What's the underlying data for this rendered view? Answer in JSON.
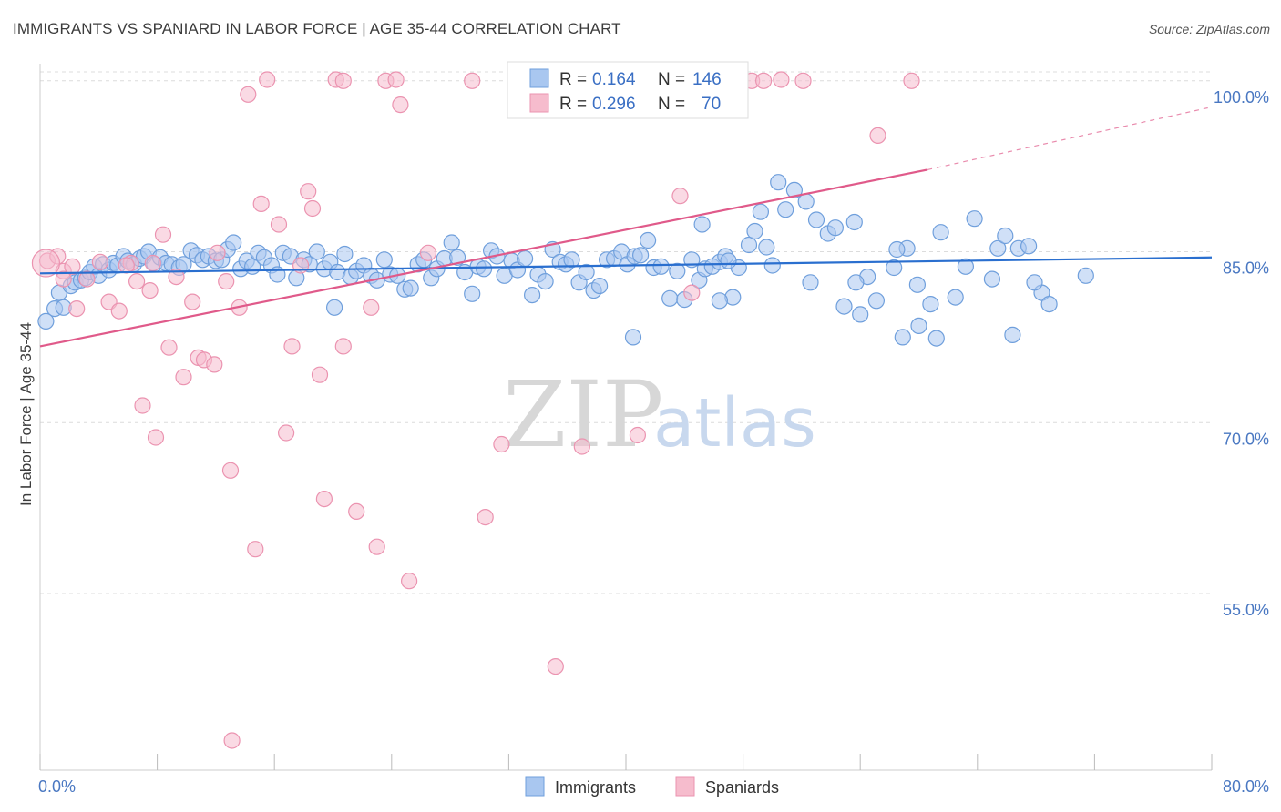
{
  "header": {
    "title": "IMMIGRANTS VS SPANIARD IN LABOR FORCE | AGE 35-44 CORRELATION CHART",
    "source": "Source: ZipAtlas.com"
  },
  "watermark": {
    "zip": "ZIP",
    "atlas": "atlas"
  },
  "legend": {
    "rows": [
      {
        "r_label": "R =",
        "r_value": "0.164",
        "n_label": "N =",
        "n_value": "146"
      },
      {
        "r_label": "R =",
        "r_value": "0.296",
        "n_label": "N =",
        "n_value": "70"
      }
    ]
  },
  "bottom_legend": [
    "Immigrants",
    "Spaniards"
  ],
  "chart_data": {
    "type": "scatter",
    "title": "IMMIGRANTS VS SPANIARD IN LABOR FORCE | AGE 35-44 CORRELATION CHART",
    "xlabel": "",
    "ylabel": "In Labor Force | Age 35-44",
    "xlim": [
      0,
      80
    ],
    "ylim": [
      39.5,
      101.5
    ],
    "x_tick_labels": [
      "0.0%",
      "80.0%"
    ],
    "y_ticks": [
      55,
      70,
      85,
      100
    ],
    "y_tick_labels": [
      "55.0%",
      "70.0%",
      "85.0%",
      "100.0%"
    ],
    "grid": true,
    "legend_position": "top-center",
    "colors": {
      "immigrants_fill": "#a9c7f0",
      "immigrants_stroke": "#6f9fdc",
      "immigrants_line": "#2a6fcf",
      "spaniards_fill": "#f6bccd",
      "spaniards_stroke": "#eb93b0",
      "spaniards_line": "#e05a8a",
      "tick_text": "#4a78c2"
    },
    "series": [
      {
        "name": "Immigrants",
        "r": 0.164,
        "n": 146,
        "trend": {
          "x": [
            0,
            80
          ],
          "y": [
            83.1,
            84.5
          ]
        },
        "points": [
          [
            0.4,
            78.9
          ],
          [
            1,
            80
          ],
          [
            1.3,
            81.4
          ],
          [
            1.6,
            80.1
          ],
          [
            2.1,
            82
          ],
          [
            2.4,
            82.3
          ],
          [
            2.8,
            82.5
          ],
          [
            3.1,
            82.7
          ],
          [
            3.4,
            83.2
          ],
          [
            3.7,
            83.7
          ],
          [
            4,
            82.9
          ],
          [
            4.3,
            83.9
          ],
          [
            4.7,
            83.4
          ],
          [
            5.0,
            84
          ],
          [
            5.3,
            83.8
          ],
          [
            5.7,
            84.6
          ],
          [
            6,
            84.2
          ],
          [
            6.4,
            83.9
          ],
          [
            6.8,
            84.4
          ],
          [
            7.1,
            84.6
          ],
          [
            7.4,
            85
          ],
          [
            7.8,
            83.9
          ],
          [
            8.2,
            84.5
          ],
          [
            8.6,
            84
          ],
          [
            9,
            83.9
          ],
          [
            9.5,
            83.6
          ],
          [
            9.8,
            83.9
          ],
          [
            10.3,
            85.1
          ],
          [
            10.7,
            84.7
          ],
          [
            11.1,
            84.3
          ],
          [
            11.5,
            84.6
          ],
          [
            12,
            84.2
          ],
          [
            12.4,
            84.3
          ],
          [
            12.8,
            85.2
          ],
          [
            13.2,
            85.8
          ],
          [
            13.7,
            83.5
          ],
          [
            14.1,
            84.2
          ],
          [
            14.5,
            83.7
          ],
          [
            14.9,
            84.9
          ],
          [
            15.3,
            84.5
          ],
          [
            15.8,
            83.8
          ],
          [
            16.2,
            83
          ],
          [
            16.6,
            84.9
          ],
          [
            17.1,
            84.6
          ],
          [
            17.5,
            82.7
          ],
          [
            18,
            84.3
          ],
          [
            18.4,
            83.9
          ],
          [
            18.9,
            85
          ],
          [
            19.4,
            83.5
          ],
          [
            19.8,
            84.1
          ],
          [
            20.3,
            83.2
          ],
          [
            20.8,
            84.8
          ],
          [
            21.2,
            82.8
          ],
          [
            21.6,
            83.3
          ],
          [
            22.1,
            83.8
          ],
          [
            22.6,
            82.9
          ],
          [
            23,
            82.5
          ],
          [
            23.5,
            84.3
          ],
          [
            23.9,
            83
          ],
          [
            24.4,
            82.9
          ],
          [
            24.9,
            81.7
          ],
          [
            25.3,
            81.8
          ],
          [
            25.8,
            83.9
          ],
          [
            26.2,
            84.3
          ],
          [
            26.7,
            82.7
          ],
          [
            27.1,
            83.5
          ],
          [
            27.6,
            84.4
          ],
          [
            28.1,
            85.8
          ],
          [
            28.5,
            84.5
          ],
          [
            29,
            83.2
          ],
          [
            29.5,
            81.3
          ],
          [
            29.9,
            83.7
          ],
          [
            30.3,
            83.5
          ],
          [
            30.8,
            85.1
          ],
          [
            31.2,
            84.6
          ],
          [
            31.7,
            82.9
          ],
          [
            32.2,
            84.2
          ],
          [
            32.6,
            83.4
          ],
          [
            33.1,
            84.4
          ],
          [
            33.6,
            81.2
          ],
          [
            34,
            83
          ],
          [
            34.5,
            82.4
          ],
          [
            35,
            85.2
          ],
          [
            35.5,
            84.1
          ],
          [
            35.9,
            83.9
          ],
          [
            36.3,
            84.3
          ],
          [
            36.8,
            82.3
          ],
          [
            37.3,
            83.2
          ],
          [
            37.8,
            81.6
          ],
          [
            38.2,
            82
          ],
          [
            38.7,
            84.3
          ],
          [
            39.2,
            84.4
          ],
          [
            39.7,
            85
          ],
          [
            40.1,
            83.9
          ],
          [
            40.6,
            84.6
          ],
          [
            41,
            84.7
          ],
          [
            41.5,
            86
          ],
          [
            41.9,
            83.6
          ],
          [
            42.4,
            83.7
          ],
          [
            43,
            80.9
          ],
          [
            43.5,
            83.3
          ],
          [
            44,
            80.8
          ],
          [
            44.5,
            84.3
          ],
          [
            45,
            82.5
          ],
          [
            45.4,
            83.5
          ],
          [
            45.9,
            83.7
          ],
          [
            46.4,
            84.1
          ],
          [
            46.8,
            84.6
          ],
          [
            47.3,
            81
          ],
          [
            47.7,
            83.6
          ],
          [
            48.4,
            85.6
          ],
          [
            48.8,
            86.8
          ],
          [
            49.2,
            88.5
          ],
          [
            49.6,
            85.4
          ],
          [
            50,
            83.8
          ],
          [
            50.4,
            91.1
          ],
          [
            50.9,
            88.7
          ],
          [
            51.5,
            90.4
          ],
          [
            52.3,
            89.4
          ],
          [
            53,
            87.8
          ],
          [
            53.8,
            86.6
          ],
          [
            54.3,
            87.1
          ],
          [
            54.9,
            80.2
          ],
          [
            55.6,
            87.6
          ],
          [
            56.5,
            82.8
          ],
          [
            57.1,
            80.7
          ],
          [
            58.3,
            83.6
          ],
          [
            59.2,
            85.3
          ],
          [
            60.8,
            80.4
          ],
          [
            61.5,
            86.7
          ],
          [
            62.5,
            81
          ],
          [
            63.2,
            83.7
          ],
          [
            63.8,
            87.9
          ],
          [
            65.4,
            85.3
          ],
          [
            65.9,
            86.4
          ],
          [
            66.4,
            77.7
          ],
          [
            66.8,
            85.3
          ],
          [
            67.5,
            85.5
          ],
          [
            68.4,
            81.4
          ],
          [
            68.9,
            80.4
          ],
          [
            71.4,
            82.9
          ],
          [
            60,
            78.5
          ],
          [
            56,
            79.5
          ],
          [
            46.4,
            80.7
          ],
          [
            20.1,
            80.1
          ],
          [
            45.2,
            87.4
          ],
          [
            40.5,
            77.5
          ],
          [
            58.9,
            77.5
          ],
          [
            61.2,
            77.4
          ],
          [
            47,
            84.2
          ],
          [
            52.6,
            82.3
          ],
          [
            65,
            82.6
          ],
          [
            55.7,
            82.3
          ],
          [
            59.9,
            82.1
          ],
          [
            67.9,
            82.3
          ],
          [
            58.5,
            85.2
          ]
        ]
      },
      {
        "name": "Spaniards",
        "r": 0.296,
        "n": 70,
        "trend": {
          "x": [
            0,
            60.6
          ],
          "y": [
            76.7,
            92.2
          ]
        },
        "trend_dashed": {
          "x": [
            60.6,
            80
          ],
          "y": [
            92.2,
            97.7
          ]
        },
        "points": [
          [
            0.5,
            84.2
          ],
          [
            1.2,
            84.6
          ],
          [
            1.6,
            83.3
          ],
          [
            2.2,
            83.7
          ],
          [
            2.5,
            80
          ],
          [
            3.2,
            82.6
          ],
          [
            4.1,
            84.1
          ],
          [
            4.7,
            80.6
          ],
          [
            5.4,
            79.8
          ],
          [
            6.2,
            84
          ],
          [
            6.6,
            82.4
          ],
          [
            7.0,
            71.5
          ],
          [
            7.5,
            81.6
          ],
          [
            7.9,
            68.7
          ],
          [
            8.4,
            86.5
          ],
          [
            8.8,
            76.6
          ],
          [
            9.3,
            82.8
          ],
          [
            9.8,
            74
          ],
          [
            10.4,
            80.6
          ],
          [
            10.8,
            75.7
          ],
          [
            11.2,
            75.5
          ],
          [
            11.9,
            75.1
          ],
          [
            12.1,
            84.9
          ],
          [
            13.0,
            65.8
          ],
          [
            13.6,
            80.1
          ],
          [
            14.2,
            98.8
          ],
          [
            14.7,
            58.9
          ],
          [
            15.1,
            89.2
          ],
          [
            15.5,
            100.1
          ],
          [
            16.3,
            87.4
          ],
          [
            16.8,
            69.1
          ],
          [
            17.2,
            76.7
          ],
          [
            17.8,
            83.8
          ],
          [
            18.3,
            90.3
          ],
          [
            18.6,
            88.8
          ],
          [
            19.1,
            74.2
          ],
          [
            19.4,
            63.3
          ],
          [
            20.2,
            100.1
          ],
          [
            20.7,
            100
          ],
          [
            20.7,
            76.7
          ],
          [
            21.6,
            62.2
          ],
          [
            22.6,
            80.1
          ],
          [
            23.0,
            59.1
          ],
          [
            23.6,
            100
          ],
          [
            24.3,
            100.1
          ],
          [
            24.6,
            97.9
          ],
          [
            25.2,
            56.1
          ],
          [
            26.5,
            84.9
          ],
          [
            29.5,
            100
          ],
          [
            30.4,
            61.7
          ],
          [
            31.5,
            68.1
          ],
          [
            35.2,
            48.6
          ],
          [
            37,
            67.9
          ],
          [
            40.8,
            68.9
          ],
          [
            41.4,
            100.1
          ],
          [
            43.7,
            89.9
          ],
          [
            44.5,
            81.4
          ],
          [
            44.9,
            100.2
          ],
          [
            47.6,
            100.1
          ],
          [
            48.6,
            100
          ],
          [
            49.4,
            100
          ],
          [
            50.6,
            100.1
          ],
          [
            52.1,
            100
          ],
          [
            57.2,
            95.2
          ],
          [
            59.5,
            100
          ],
          [
            13.1,
            42.1
          ],
          [
            7.7,
            84
          ],
          [
            1.6,
            82.6
          ],
          [
            12.7,
            82.4
          ],
          [
            5.9,
            83.8
          ]
        ]
      }
    ]
  }
}
